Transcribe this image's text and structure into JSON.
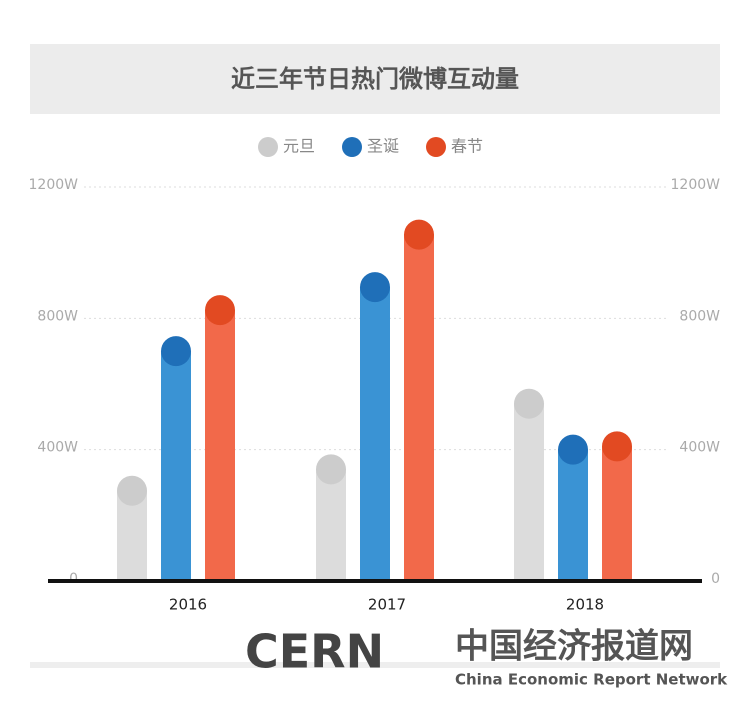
{
  "chart_data": {
    "type": "bar",
    "title": "近三年节日热门微博互动量",
    "categories": [
      "2016",
      "2017",
      "2018"
    ],
    "series": [
      {
        "name": "元旦",
        "color": "#dcdcdc",
        "dot": "#cccccc",
        "values": [
          275,
          340,
          540
        ]
      },
      {
        "name": "圣诞",
        "color": "#3a93d4",
        "dot": "#1f6fb8",
        "values": [
          700,
          895,
          400
        ]
      },
      {
        "name": "春节",
        "color": "#f2694a",
        "dot": "#e24a22",
        "values": [
          825,
          1055,
          410
        ]
      }
    ],
    "ylim": [
      0,
      1200
    ],
    "yticks": [
      0,
      {
        "value": 400,
        "label": "400W"
      },
      {
        "value": 800,
        "label": "800W"
      },
      {
        "value": 1200,
        "label": "1200W"
      }
    ],
    "grid": true
  },
  "footer": {
    "logo": "CERN",
    "name": "中国经济报道网",
    "name_en": "China Economic Report Network"
  }
}
